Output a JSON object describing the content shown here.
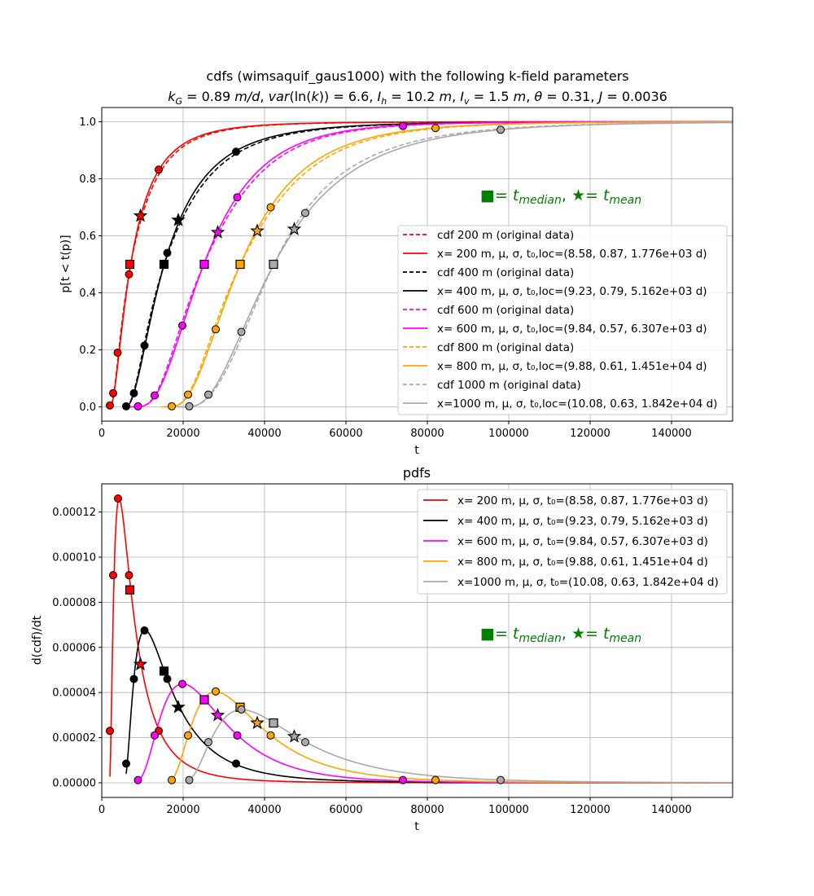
{
  "chart_data": [
    {
      "type": "line",
      "title": "cdfs (wimsaquif_gaus1000) with the following k-field parameters",
      "subtitle": "k_G = 0.89 m/d, var(ln(k)) = 6.6, I_h = 10.2 m, I_v = 1.5 m, θ = 0.31, J = 0.0036",
      "subtitle_parts": {
        "kg_sym": "k",
        "kg_sub": "G",
        "kg_val": " = 0.89 ",
        "kg_unit": "m/d",
        "sep1": ", ",
        "var_sym": "var",
        "var_val": "(ln(",
        "var_k": "k",
        "var_end": ")) = 6.6",
        "sep2": ", ",
        "ih_sym": "I",
        "ih_sub": "h",
        "ih_val": " = 10.2 ",
        "ih_unit": "m",
        "sep3": ", ",
        "iv_sym": "I",
        "iv_sub": "v",
        "iv_val": " = 1.5 ",
        "iv_unit": "m",
        "sep4": ", ",
        "theta_sym": "θ",
        "theta_val": " = 0.31",
        "sep5": ", ",
        "j_sym": "J",
        "j_val": " = 0.0036"
      },
      "xlabel": "t",
      "ylabel": "p[t < t(p)]",
      "xlim": [
        0,
        155000
      ],
      "ylim": [
        -0.05,
        1.05
      ],
      "xticks": [
        "0",
        "20000",
        "40000",
        "60000",
        "80000",
        "100000",
        "120000",
        "140000"
      ],
      "yticks": [
        "0.0",
        "0.2",
        "0.4",
        "0.6",
        "0.8",
        "1.0"
      ],
      "grid": true,
      "legend_position": "center-right",
      "legend": [
        "cdf 200 m (original data)",
        "x= 200 m, μ, σ, t₀,loc=(8.58, 0.87, 1.776e+03 d)",
        "cdf 400 m (original data)",
        "x= 400 m, μ, σ, t₀,loc=(9.23, 0.79, 5.162e+03 d)",
        "cdf 600 m (original data)",
        "x= 600 m, μ, σ, t₀,loc=(9.84, 0.57, 6.307e+03 d)",
        "cdf 800 m (original data)",
        "x= 800 m, μ, σ, t₀,loc=(9.88, 0.61, 1.451e+04 d)",
        "cdf 1000 m (original data)",
        "x=1000 m, μ, σ, t₀,loc=(10.08, 0.63, 1.842e+04 d)"
      ],
      "annotation": {
        "median_sym": "■",
        "median_text": "= t",
        "median_sub": "median",
        "sep": ",  ",
        "mean_sym": "★",
        "mean_text": "= t",
        "mean_sub": "mean"
      },
      "series": [
        {
          "distance": "200 m",
          "color": "#ff0000",
          "mu": 8.58,
          "sigma": 0.87,
          "t0": 1776,
          "points": [
            [
              2000,
              0.005
            ],
            [
              2800,
              0.048
            ],
            [
              3900,
              0.19
            ],
            [
              6700,
              0.465
            ],
            [
              14000,
              0.832
            ]
          ],
          "median": [
            6900,
            0.5
          ],
          "mean": [
            9500,
            0.67
          ]
        },
        {
          "distance": "400 m",
          "color": "#000000",
          "mu": 9.23,
          "sigma": 0.79,
          "t0": 5162,
          "points": [
            [
              6000,
              0.002
            ],
            [
              7900,
              0.048
            ],
            [
              10500,
              0.215
            ],
            [
              16100,
              0.54
            ],
            [
              33000,
              0.895
            ]
          ],
          "median": [
            15300,
            0.5
          ],
          "mean": [
            18800,
            0.655
          ]
        },
        {
          "distance": "600 m",
          "color": "#ff00ff",
          "mu": 9.84,
          "sigma": 0.57,
          "t0": 6307,
          "points": [
            [
              8900,
              0.002
            ],
            [
              13000,
              0.04
            ],
            [
              19800,
              0.285
            ],
            [
              33300,
              0.735
            ],
            [
              74000,
              0.985
            ]
          ],
          "median": [
            25200,
            0.5
          ],
          "mean": [
            28500,
            0.612
          ]
        },
        {
          "distance": "800 m",
          "color": "#ffa500",
          "mu": 9.88,
          "sigma": 0.61,
          "t0": 14510,
          "points": [
            [
              17200,
              0.002
            ],
            [
              21200,
              0.043
            ],
            [
              28000,
              0.272
            ],
            [
              41500,
              0.7
            ],
            [
              82000,
              0.978
            ]
          ],
          "median": [
            34000,
            0.5
          ],
          "mean": [
            38200,
            0.617
          ]
        },
        {
          "distance": "1000 m",
          "color": "#a9a9a9",
          "mu": 10.08,
          "sigma": 0.63,
          "t0": 18420,
          "points": [
            [
              21500,
              0.002
            ],
            [
              26200,
              0.043
            ],
            [
              34300,
              0.263
            ],
            [
              50000,
              0.68
            ],
            [
              98000,
              0.972
            ]
          ],
          "median": [
            42200,
            0.5
          ],
          "mean": [
            47300,
            0.623
          ]
        }
      ]
    },
    {
      "type": "line",
      "title": "pdfs",
      "xlabel": "t",
      "ylabel": "d(cdf)/dt",
      "xlim": [
        0,
        155000
      ],
      "ylim": [
        -6.5e-06,
        0.0001325
      ],
      "xticks": [
        "0",
        "20000",
        "40000",
        "60000",
        "80000",
        "100000",
        "120000",
        "140000"
      ],
      "yticks": [
        "0.00000",
        "0.00002",
        "0.00004",
        "0.00006",
        "0.00008",
        "0.00010",
        "0.00012"
      ],
      "grid": true,
      "legend_position": "top-right",
      "legend": [
        "x= 200 m, μ, σ, t₀=(8.58, 0.87, 1.776e+03 d)",
        "x= 400 m, μ, σ, t₀=(9.23, 0.79, 5.162e+03 d)",
        "x= 600 m, μ, σ, t₀=(9.84, 0.57, 6.307e+03 d)",
        "x= 800 m, μ, σ, t₀=(9.88, 0.61, 1.451e+04 d)",
        "x=1000 m, μ, σ, t₀=(10.08, 0.63, 1.842e+04 d)"
      ],
      "annotation": {
        "median_sym": "■",
        "median_text": "= t",
        "median_sub": "median",
        "sep": ",  ",
        "mean_sym": "★",
        "mean_text": "= t",
        "mean_sub": "mean"
      },
      "series": [
        {
          "distance": "200 m",
          "color": "#ff0000",
          "points": [
            [
              2000,
              2.3e-05
            ],
            [
              2800,
              9.2e-05
            ],
            [
              4000,
              0.000126
            ],
            [
              6700,
              9.2e-05
            ],
            [
              14000,
              2.3e-05
            ]
          ],
          "median": [
            6900,
            8.55e-05
          ],
          "mean": [
            9500,
            5.25e-05
          ]
        },
        {
          "distance": "400 m",
          "color": "#000000",
          "points": [
            [
              6000,
              8.5e-06
            ],
            [
              7900,
              4.6e-05
            ],
            [
              10500,
              6.75e-05
            ],
            [
              16100,
              4.6e-05
            ],
            [
              33000,
              8.5e-06
            ]
          ],
          "median": [
            15300,
            4.95e-05
          ],
          "mean": [
            18800,
            3.35e-05
          ]
        },
        {
          "distance": "600 m",
          "color": "#ff00ff",
          "points": [
            [
              8900,
              1.2e-06
            ],
            [
              13000,
              2.1e-05
            ],
            [
              19800,
              4.38e-05
            ],
            [
              33300,
              2.1e-05
            ],
            [
              74000,
              1.2e-06
            ]
          ],
          "median": [
            25200,
            3.68e-05
          ],
          "mean": [
            28500,
            2.99e-05
          ]
        },
        {
          "distance": "800 m",
          "color": "#ffa500",
          "points": [
            [
              17200,
              1.2e-06
            ],
            [
              21200,
              2.1e-05
            ],
            [
              28000,
              4.05e-05
            ],
            [
              41500,
              2.1e-05
            ],
            [
              82000,
              1.2e-06
            ]
          ],
          "median": [
            34000,
            3.35e-05
          ],
          "mean": [
            38200,
            2.65e-05
          ]
        },
        {
          "distance": "1000 m",
          "color": "#a9a9a9",
          "points": [
            [
              21500,
              1.2e-06
            ],
            [
              26200,
              1.8e-05
            ],
            [
              34300,
              3.25e-05
            ],
            [
              50000,
              1.8e-05
            ],
            [
              98000,
              1.2e-06
            ]
          ],
          "median": [
            42200,
            2.65e-05
          ],
          "mean": [
            47300,
            2.05e-05
          ]
        }
      ]
    }
  ]
}
